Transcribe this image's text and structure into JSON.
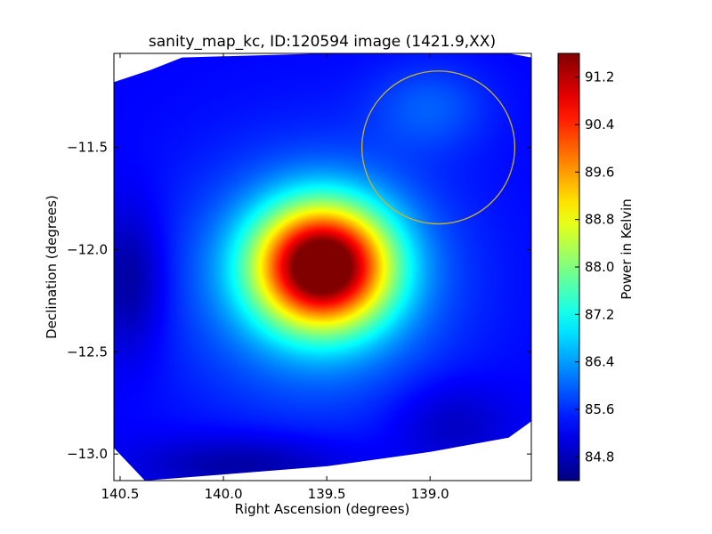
{
  "chart_data": {
    "type": "heatmap",
    "title": "sanity_map_kc, ID:120594 image (1421.9,XX)",
    "xlabel": "Right Ascension (degrees)",
    "ylabel": "Declination (degrees)",
    "xlim": [
      140.53,
      138.51
    ],
    "ylim": [
      -13.13,
      -11.04
    ],
    "xticks": [
      140.5,
      140.0,
      139.5,
      139.0
    ],
    "xtick_labels": [
      "140.5",
      "140.0",
      "139.5",
      "139.0"
    ],
    "yticks": [
      -11.5,
      -12.0,
      -12.5,
      -13.0
    ],
    "ytick_labels": [
      "−11.5",
      "−12.0",
      "−12.5",
      "−13.0"
    ],
    "colorbar": {
      "label": "Power in Kelvin",
      "range": [
        84.4,
        91.6
      ],
      "ticks": [
        91.2,
        90.4,
        89.6,
        88.8,
        88.0,
        87.2,
        86.4,
        85.6,
        84.8
      ],
      "tick_labels": [
        "91.2",
        "90.4",
        "89.6",
        "88.8",
        "88.0",
        "87.2",
        "86.4",
        "85.6",
        "84.8"
      ],
      "colormap": "jet"
    },
    "field": {
      "background_value": 85.3,
      "blobs": [
        {
          "ra": 139.52,
          "dec": -12.08,
          "amplitude": 6.2,
          "sigma_ra": 0.23,
          "sigma_dec": 0.21
        },
        {
          "ra": 139.55,
          "dec": -12.15,
          "amplitude": 1.2,
          "sigma_ra": 0.45,
          "sigma_dec": 0.42
        },
        {
          "ra": 139.0,
          "dec": -11.3,
          "amplitude": 0.6,
          "sigma_ra": 0.2,
          "sigma_dec": 0.15
        },
        {
          "ra": 140.45,
          "dec": -12.15,
          "amplitude": -0.8,
          "sigma_ra": 0.12,
          "sigma_dec": 0.25
        },
        {
          "ra": 139.9,
          "dec": -13.05,
          "amplitude": -0.7,
          "sigma_ra": 0.35,
          "sigma_dec": 0.1
        },
        {
          "ra": 138.9,
          "dec": -12.85,
          "amplitude": -0.5,
          "sigma_ra": 0.2,
          "sigma_dec": 0.15
        }
      ],
      "coverage_polygon": [
        [
          140.53,
          -11.18
        ],
        [
          140.35,
          -11.12
        ],
        [
          140.2,
          -11.06
        ],
        [
          139.5,
          -11.04
        ],
        [
          138.62,
          -11.04
        ],
        [
          138.51,
          -11.06
        ],
        [
          138.51,
          -12.84
        ],
        [
          138.62,
          -12.92
        ],
        [
          139.0,
          -12.99
        ],
        [
          139.5,
          -13.06
        ],
        [
          140.0,
          -13.1
        ],
        [
          140.38,
          -13.13
        ],
        [
          140.53,
          -12.97
        ]
      ]
    },
    "circle": {
      "ra": 138.96,
      "dec": -11.5,
      "radius_deg": 0.37,
      "color": "#c8b428"
    },
    "grid": false
  }
}
